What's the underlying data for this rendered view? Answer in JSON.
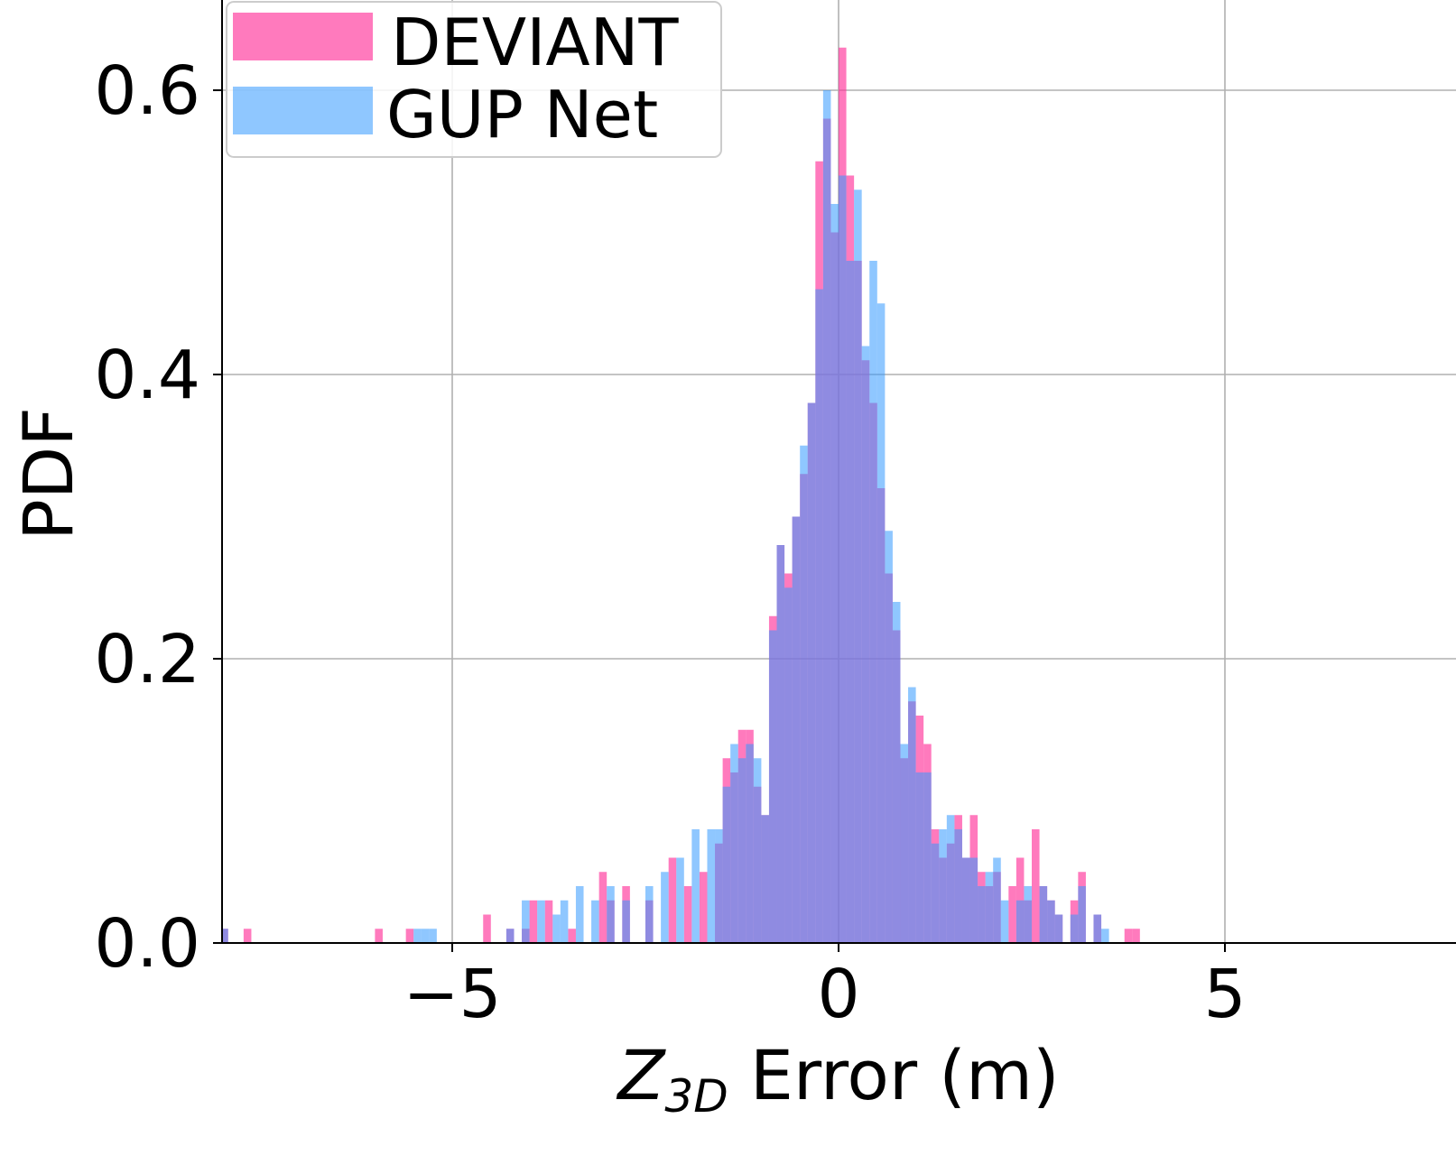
{
  "chart_data": {
    "type": "histogram",
    "title": "",
    "xlabel_var": "Z",
    "xlabel_sub": "3D",
    "xlabel_rest": " Error (m)",
    "ylabel": "PDF",
    "xlim": [
      -8,
      8
    ],
    "ylim": [
      0,
      0.66
    ],
    "xticks": [
      -5,
      0,
      5
    ],
    "xtick_labels": [
      "−5",
      "0",
      "5"
    ],
    "yticks": [
      0.0,
      0.2,
      0.4,
      0.6
    ],
    "ytick_labels": [
      "0.0",
      "0.2",
      "0.4",
      "0.6"
    ],
    "grid": true,
    "legend_position": "upper-left",
    "series": [
      {
        "name": "DEVIANT",
        "color": "#ff3399",
        "bins": [
          [
            -7.95,
            0.01
          ],
          [
            -7.65,
            0.01
          ],
          [
            -5.95,
            0.01
          ],
          [
            -5.55,
            0.01
          ],
          [
            -4.55,
            0.02
          ],
          [
            -4.25,
            0.01
          ],
          [
            -4.05,
            0.01
          ],
          [
            -3.95,
            0.03
          ],
          [
            -3.75,
            0.03
          ],
          [
            -3.45,
            0.01
          ],
          [
            -3.05,
            0.05
          ],
          [
            -2.95,
            0.03
          ],
          [
            -2.75,
            0.04
          ],
          [
            -2.45,
            0.03
          ],
          [
            -2.15,
            0.06
          ],
          [
            -1.95,
            0.04
          ],
          [
            -1.75,
            0.05
          ],
          [
            -1.55,
            0.07
          ],
          [
            -1.45,
            0.13
          ],
          [
            -1.35,
            0.12
          ],
          [
            -1.25,
            0.15
          ],
          [
            -1.15,
            0.15
          ],
          [
            -1.05,
            0.11
          ],
          [
            -0.95,
            0.09
          ],
          [
            -0.85,
            0.23
          ],
          [
            -0.75,
            0.28
          ],
          [
            -0.65,
            0.26
          ],
          [
            -0.55,
            0.3
          ],
          [
            -0.45,
            0.33
          ],
          [
            -0.35,
            0.38
          ],
          [
            -0.25,
            0.55
          ],
          [
            -0.15,
            0.58
          ],
          [
            -0.05,
            0.5
          ],
          [
            0.05,
            0.63
          ],
          [
            0.15,
            0.54
          ],
          [
            0.25,
            0.48
          ],
          [
            0.35,
            0.41
          ],
          [
            0.45,
            0.38
          ],
          [
            0.55,
            0.32
          ],
          [
            0.65,
            0.26
          ],
          [
            0.75,
            0.22
          ],
          [
            0.85,
            0.13
          ],
          [
            0.95,
            0.17
          ],
          [
            1.05,
            0.16
          ],
          [
            1.15,
            0.14
          ],
          [
            1.25,
            0.08
          ],
          [
            1.35,
            0.06
          ],
          [
            1.45,
            0.07
          ],
          [
            1.55,
            0.09
          ],
          [
            1.65,
            0.06
          ],
          [
            1.75,
            0.09
          ],
          [
            1.85,
            0.05
          ],
          [
            1.95,
            0.04
          ],
          [
            2.05,
            0.05
          ],
          [
            2.25,
            0.04
          ],
          [
            2.35,
            0.06
          ],
          [
            2.45,
            0.03
          ],
          [
            2.55,
            0.08
          ],
          [
            2.65,
            0.04
          ],
          [
            2.75,
            0.03
          ],
          [
            2.85,
            0.02
          ],
          [
            3.05,
            0.03
          ],
          [
            3.15,
            0.05
          ],
          [
            3.35,
            0.02
          ],
          [
            3.75,
            0.01
          ],
          [
            3.85,
            0.01
          ]
        ]
      },
      {
        "name": "GUP Net",
        "color": "#3399ff",
        "bins": [
          [
            -7.95,
            0.01
          ],
          [
            -5.45,
            0.01
          ],
          [
            -5.35,
            0.01
          ],
          [
            -5.25,
            0.01
          ],
          [
            -4.25,
            0.01
          ],
          [
            -4.05,
            0.03
          ],
          [
            -3.85,
            0.03
          ],
          [
            -3.65,
            0.02
          ],
          [
            -3.55,
            0.03
          ],
          [
            -3.35,
            0.04
          ],
          [
            -3.15,
            0.03
          ],
          [
            -2.95,
            0.04
          ],
          [
            -2.75,
            0.03
          ],
          [
            -2.45,
            0.04
          ],
          [
            -2.25,
            0.05
          ],
          [
            -2.05,
            0.06
          ],
          [
            -1.85,
            0.08
          ],
          [
            -1.65,
            0.08
          ],
          [
            -1.55,
            0.08
          ],
          [
            -1.45,
            0.11
          ],
          [
            -1.35,
            0.14
          ],
          [
            -1.25,
            0.13
          ],
          [
            -1.15,
            0.14
          ],
          [
            -1.05,
            0.13
          ],
          [
            -0.95,
            0.09
          ],
          [
            -0.85,
            0.22
          ],
          [
            -0.75,
            0.28
          ],
          [
            -0.65,
            0.25
          ],
          [
            -0.55,
            0.3
          ],
          [
            -0.45,
            0.35
          ],
          [
            -0.35,
            0.38
          ],
          [
            -0.25,
            0.46
          ],
          [
            -0.15,
            0.6
          ],
          [
            -0.05,
            0.52
          ],
          [
            0.05,
            0.54
          ],
          [
            0.15,
            0.48
          ],
          [
            0.25,
            0.53
          ],
          [
            0.35,
            0.42
          ],
          [
            0.45,
            0.48
          ],
          [
            0.55,
            0.45
          ],
          [
            0.65,
            0.29
          ],
          [
            0.75,
            0.24
          ],
          [
            0.85,
            0.14
          ],
          [
            0.95,
            0.18
          ],
          [
            1.05,
            0.12
          ],
          [
            1.15,
            0.12
          ],
          [
            1.25,
            0.07
          ],
          [
            1.35,
            0.08
          ],
          [
            1.45,
            0.09
          ],
          [
            1.55,
            0.08
          ],
          [
            1.65,
            0.06
          ],
          [
            1.75,
            0.06
          ],
          [
            1.85,
            0.04
          ],
          [
            1.95,
            0.05
          ],
          [
            2.05,
            0.06
          ],
          [
            2.15,
            0.03
          ],
          [
            2.35,
            0.03
          ],
          [
            2.45,
            0.04
          ],
          [
            2.65,
            0.04
          ],
          [
            2.75,
            0.03
          ],
          [
            2.85,
            0.02
          ],
          [
            3.05,
            0.02
          ],
          [
            3.15,
            0.04
          ],
          [
            3.35,
            0.02
          ],
          [
            3.45,
            0.01
          ]
        ]
      }
    ]
  }
}
